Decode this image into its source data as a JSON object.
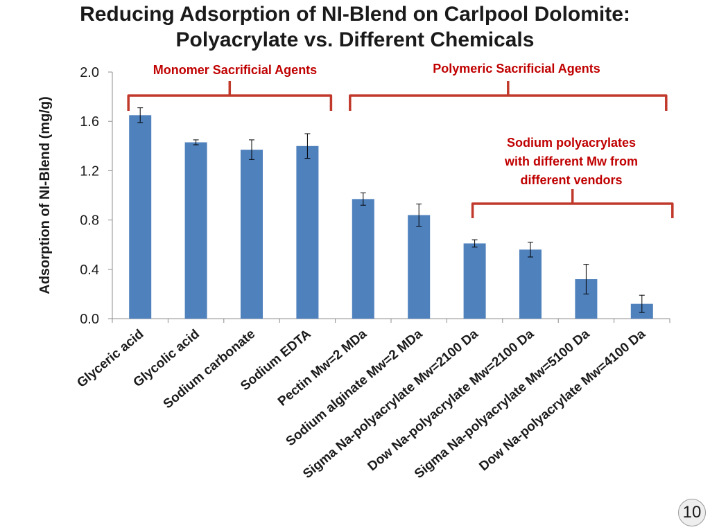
{
  "slide": {
    "title_line1": "Reducing Adsorption of NI-Blend on Carlpool Dolomite:",
    "title_line2": "Polyacrylate vs. Different Chemicals",
    "page_number": "10"
  },
  "chart_data": {
    "type": "bar",
    "ylabel": "Adsorption of NI-Blend (mg/g)",
    "ylim": [
      0,
      2.0
    ],
    "yticks": [
      "0.0",
      "0.4",
      "0.8",
      "1.2",
      "1.6",
      "2.0"
    ],
    "grid": false,
    "error_bars": true,
    "bar_color": "#4f81bd",
    "categories": [
      "Glyceric acid",
      "Glycolic acid",
      "Sodium carbonate",
      "Sodium EDTA",
      "Pectin Mw=2 MDa",
      "Sodium alginate Mw=2 MDa",
      "Sigma Na-polyacrylate Mw=2100 Da",
      "Dow Na-polyacrylate Mw=2100 Da",
      "Sigma Na-polyacrylate Mw=5100 Da",
      "Dow Na-polyacrylate Mw=4100 Da"
    ],
    "values": [
      1.65,
      1.43,
      1.37,
      1.4,
      0.97,
      0.84,
      0.61,
      0.56,
      0.32,
      0.12
    ],
    "errors": [
      0.06,
      0.02,
      0.08,
      0.1,
      0.05,
      0.09,
      0.03,
      0.06,
      0.12,
      0.07
    ],
    "annotations": {
      "bracket_color": "#c0392b",
      "label_color": "#c00000",
      "monomer": {
        "label": "Monomer Sacrificial Agents",
        "first": 0,
        "last": 3
      },
      "polymeric": {
        "label": "Polymeric Sacrificial Agents",
        "first": 4,
        "last": 9
      },
      "polyacrylates": {
        "lines": [
          "Sodium polyacrylates",
          "with different Mw from",
          "different vendors"
        ],
        "first": 6,
        "last": 9
      }
    }
  }
}
